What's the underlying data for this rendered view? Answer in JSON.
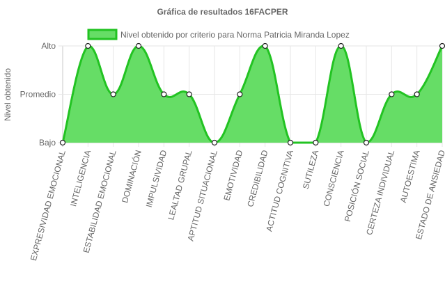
{
  "chart_data": {
    "type": "area",
    "title": "Gráfica de resultados 16FACPER",
    "ylabel": "Nivel obtenido",
    "xlabel": "",
    "y_levels": [
      "Bajo",
      "Promedio",
      "Alto"
    ],
    "ylim": [
      0,
      2
    ],
    "grid": true,
    "legend_position": "top",
    "categories": [
      "EXPRESIVIDAD EMOCIONAL",
      "INTELIGENCIA",
      "ESTABILIDAD EMOCIONAL",
      "DOMINACIÓN",
      "IMPULSIVIDAD",
      "LEALTAD GRUPAL",
      "APTITUD SITUACIONAL",
      "EMOTIVIDAD",
      "CREDIBILIDAD",
      "ACTITUD COGNITIVA",
      "SUTILEZA",
      "CONSCIENCIA",
      "POSICIÓN SOCIAL",
      "CERTEZA INDIVIDUAL",
      "AUTOESTIMA",
      "ESTADO DE ANSIEDAD"
    ],
    "series": [
      {
        "name": "Nivel obtenido por criterio para Norma Patricia Miranda Lopez",
        "values": [
          0,
          2,
          1,
          2,
          1,
          1,
          0,
          1,
          2,
          0,
          0,
          2,
          0,
          1,
          1,
          2
        ],
        "fill_color": "#66dd66",
        "line_color": "#22c322"
      }
    ]
  }
}
